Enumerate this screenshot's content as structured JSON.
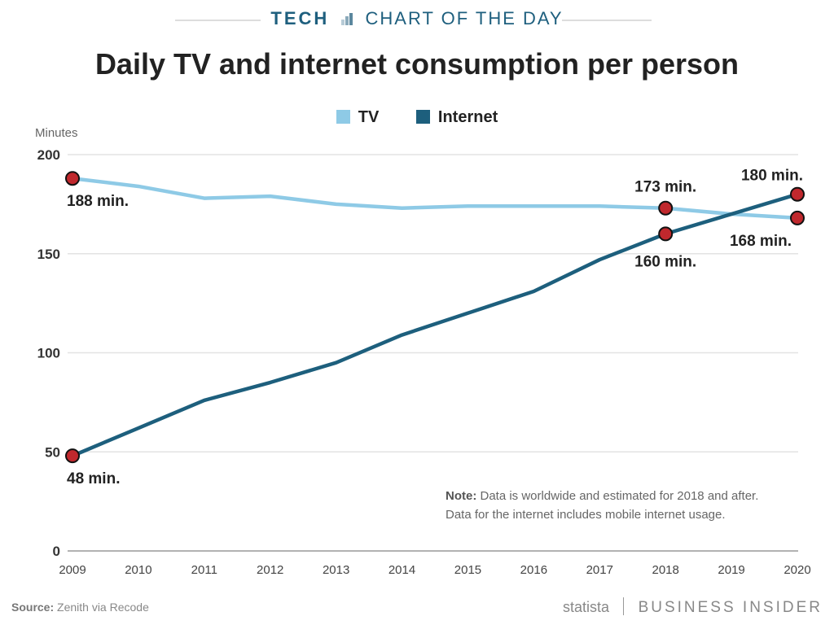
{
  "header": {
    "kicker_bold": "TECH",
    "kicker": "CHART OF THE DAY"
  },
  "chart_data": {
    "type": "line",
    "title": "Daily TV and internet consumption per person",
    "ylabel": "Minutes",
    "xlabel": "",
    "x": [
      2009,
      2010,
      2011,
      2012,
      2013,
      2014,
      2015,
      2016,
      2017,
      2018,
      2019,
      2020
    ],
    "ylim": [
      0,
      200
    ],
    "yticks": [
      0,
      50,
      100,
      150,
      200
    ],
    "grid": true,
    "legend_placement": "top-center",
    "series": [
      {
        "name": "TV",
        "color": "#8ecae6",
        "values": [
          188,
          184,
          178,
          179,
          175,
          173,
          174,
          174,
          174,
          173,
          170,
          168
        ]
      },
      {
        "name": "Internet",
        "color": "#1d5f7d",
        "values": [
          48,
          62,
          76,
          85,
          95,
          109,
          120,
          131,
          147,
          160,
          170,
          180
        ]
      }
    ],
    "annotations": [
      {
        "series": "TV",
        "x": 2009,
        "label": "188 min."
      },
      {
        "series": "TV",
        "x": 2018,
        "label": "173 min."
      },
      {
        "series": "TV",
        "x": 2020,
        "label": "168 min."
      },
      {
        "series": "Internet",
        "x": 2009,
        "label": "48 min."
      },
      {
        "series": "Internet",
        "x": 2018,
        "label": "160 min."
      },
      {
        "series": "Internet",
        "x": 2020,
        "label": "180 min."
      }
    ],
    "marker_color": "#c0282d"
  },
  "note": {
    "bold": "Note:",
    "line1": "Data is worldwide and estimated for 2018 and after.",
    "line2": "Data for the internet includes mobile internet usage."
  },
  "footer": {
    "source_bold": "Source:",
    "source": "Zenith via Recode",
    "brand1": "statista",
    "brand2": "BUSINESS INSIDER"
  }
}
